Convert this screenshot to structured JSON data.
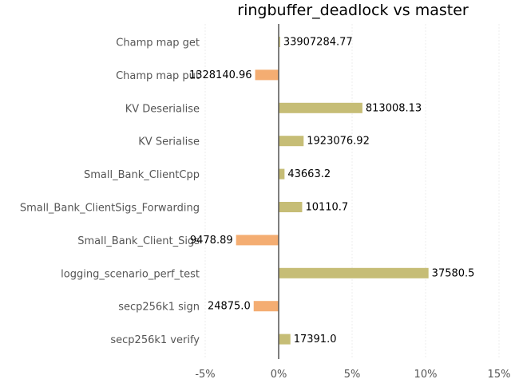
{
  "chart_data": {
    "type": "bar",
    "orientation": "horizontal",
    "title": "ringbuffer_deadlock vs master",
    "xlabel": "",
    "ylabel": "",
    "xlim": [
      -5,
      15
    ],
    "x_ticks": [
      -5,
      0,
      5,
      10,
      15
    ],
    "x_tick_labels": [
      "-5%",
      "0%",
      "5%",
      "10%",
      "15%"
    ],
    "grid": "vertical",
    "positive_color": "#c6bd76",
    "negative_color": "#f4ad72",
    "categories": [
      "Champ map get",
      "Champ map put",
      "KV Deserialise",
      "KV Serialise",
      "Small_Bank_ClientCpp",
      "Small_Bank_ClientSigs_Forwarding",
      "Small_Bank_Client_Sigs",
      "logging_scenario_perf_test",
      "secp256k1 sign",
      "secp256k1 verify"
    ],
    "values": [
      0.1,
      -1.6,
      5.7,
      1.7,
      0.4,
      1.6,
      -2.9,
      10.2,
      -1.7,
      0.8
    ],
    "value_labels": [
      "33907284.77",
      "1328140.96",
      "813008.13",
      "1923076.92",
      "43663.2",
      "10110.7",
      "9478.89",
      "37580.5",
      "24875.0",
      "17391.0"
    ]
  }
}
